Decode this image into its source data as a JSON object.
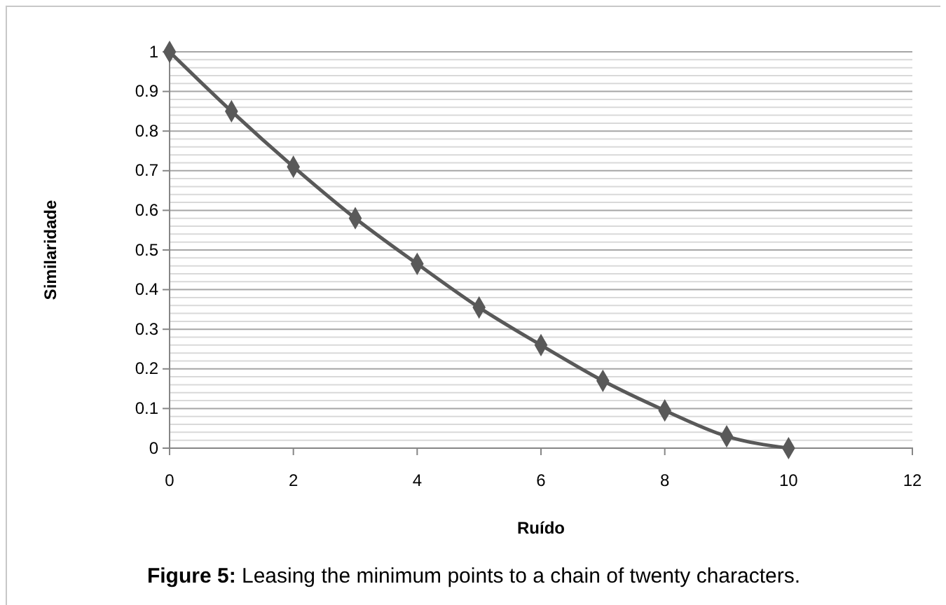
{
  "chart_data": {
    "type": "line",
    "xlabel": "Ruído",
    "ylabel": "Similaridade",
    "annotations": [
      "Figure 5: Leasing the minimum points to a chain of twenty characters."
    ],
    "x": [
      0,
      1,
      2,
      3,
      4,
      5,
      6,
      7,
      8,
      9,
      10
    ],
    "series": [
      {
        "color": "#595959",
        "values": [
          1,
          0.85,
          0.71,
          0.58,
          0.465,
          0.355,
          0.26,
          0.17,
          0.095,
          0.03,
          0
        ]
      }
    ],
    "xlim": [
      0,
      12
    ],
    "xticks": [
      0,
      2,
      4,
      6,
      8,
      10,
      12
    ],
    "ylim": [
      0,
      1
    ],
    "yticks": [
      0,
      {
        "value": 0.02,
        "label": null
      },
      {
        "value": 0.04,
        "label": null
      },
      {
        "value": 0.06,
        "label": null
      },
      {
        "value": 0.08,
        "label": null
      },
      0.1,
      {
        "value": 0.12,
        "label": null
      },
      {
        "value": 0.14,
        "label": null
      },
      {
        "value": 0.16,
        "label": null
      },
      {
        "value": 0.18,
        "label": null
      },
      0.2,
      {
        "value": 0.22,
        "label": null
      },
      {
        "value": 0.24,
        "label": null
      },
      {
        "value": 0.26,
        "label": null
      },
      {
        "value": 0.28,
        "label": null
      },
      0.3,
      {
        "value": 0.32,
        "label": null
      },
      {
        "value": 0.34,
        "label": null
      },
      {
        "value": 0.36,
        "label": null
      },
      {
        "value": 0.38,
        "label": null
      },
      0.4,
      {
        "value": 0.42,
        "label": null
      },
      {
        "value": 0.44,
        "label": null
      },
      {
        "value": 0.46,
        "label": null
      },
      {
        "value": 0.48,
        "label": null
      },
      0.5,
      {
        "value": 0.52,
        "label": null
      },
      {
        "value": 0.54,
        "label": null
      },
      {
        "value": 0.56,
        "label": null
      },
      {
        "value": 0.58,
        "label": null
      },
      0.6,
      {
        "value": 0.62,
        "label": null
      },
      {
        "value": 0.64,
        "label": null
      },
      {
        "value": 0.66,
        "label": null
      },
      {
        "value": 0.68,
        "label": null
      },
      0.7,
      {
        "value": 0.72,
        "label": null
      },
      {
        "value": 0.74,
        "label": null
      },
      {
        "value": 0.76,
        "label": null
      },
      {
        "value": 0.78,
        "label": null
      },
      0.8,
      {
        "value": 0.82,
        "label": null
      },
      {
        "value": 0.84,
        "label": null
      },
      {
        "value": 0.86,
        "label": null
      },
      {
        "value": 0.88,
        "label": null
      },
      0.9,
      {
        "value": 0.92,
        "label": null
      },
      {
        "value": 0.94,
        "label": null
      },
      {
        "value": 0.96,
        "label": null
      },
      {
        "value": 0.98,
        "label": null
      },
      1
    ],
    "grid": "y",
    "marker": "diamond",
    "line_style": "solid"
  }
}
